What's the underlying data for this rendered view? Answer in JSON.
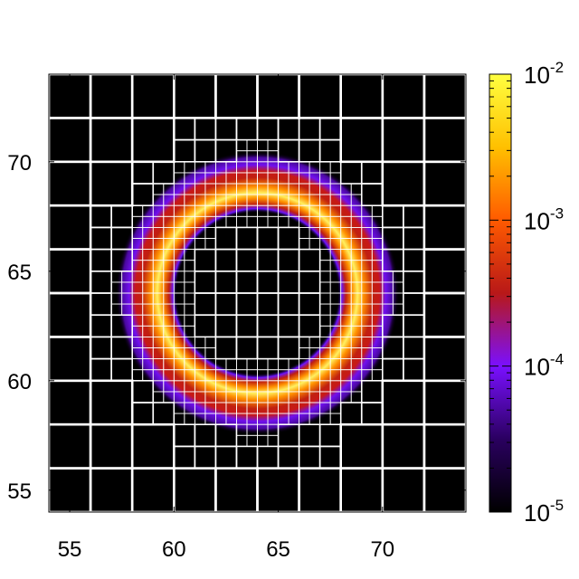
{
  "chart_data": {
    "type": "heatmap",
    "title": "",
    "xlabel": "",
    "ylabel": "",
    "xlim": [
      54,
      74
    ],
    "ylim": [
      54,
      74
    ],
    "x_ticks": [
      {
        "value": 55,
        "label": "55"
      },
      {
        "value": 60,
        "label": "60"
      },
      {
        "value": 65,
        "label": "65"
      },
      {
        "value": 70,
        "label": "70"
      }
    ],
    "y_ticks": [
      {
        "value": 55,
        "label": "55"
      },
      {
        "value": 60,
        "label": "60"
      },
      {
        "value": 65,
        "label": "65"
      },
      {
        "value": 70,
        "label": "70"
      }
    ],
    "colorbar": {
      "scale": "log",
      "range": [
        1e-05,
        0.01
      ],
      "ticks": [
        {
          "value": 1e-05,
          "base": "10",
          "exponent": "-5"
        },
        {
          "value": 0.0001,
          "base": "10",
          "exponent": "-4"
        },
        {
          "value": 0.001,
          "base": "10",
          "exponent": "-3"
        },
        {
          "value": 0.01,
          "base": "10",
          "exponent": "-2"
        }
      ],
      "colors": [
        "#000000",
        "#2a0060",
        "#7a10ff",
        "#b81818",
        "#ff5a00",
        "#ffc000",
        "#ffff40"
      ]
    },
    "ring": {
      "center": [
        64,
        64
      ],
      "radius": 4.8,
      "peak_value": 0.006,
      "inner_edge_radius": 3.9,
      "outer_edge_radius": 6.8
    },
    "mesh": {
      "coarse_cell": 2,
      "fine_cell": 1,
      "finest_cell": 0.5,
      "grid_color": "#ffffff"
    }
  }
}
